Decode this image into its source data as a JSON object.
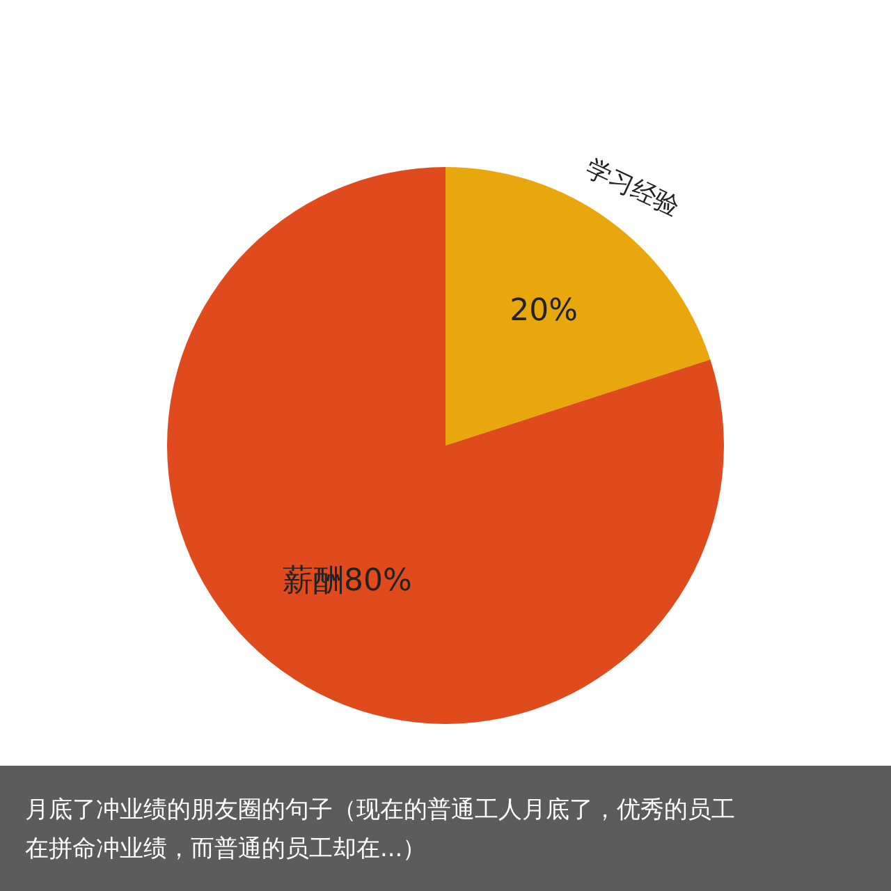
{
  "chart_data": {
    "type": "pie",
    "categories": [
      "学习经验",
      null
    ],
    "values": [
      20,
      80
    ],
    "colors": [
      "#e8a70c",
      "#e04b1d"
    ],
    "value_labels": [
      "20%",
      "薪酬80%"
    ],
    "annotations": [
      "月底了冲业绩的朋友圈的句子（现在的普通工人月底了，优秀的员工在拼命冲业绩，而普通的员工却在...）"
    ]
  }
}
